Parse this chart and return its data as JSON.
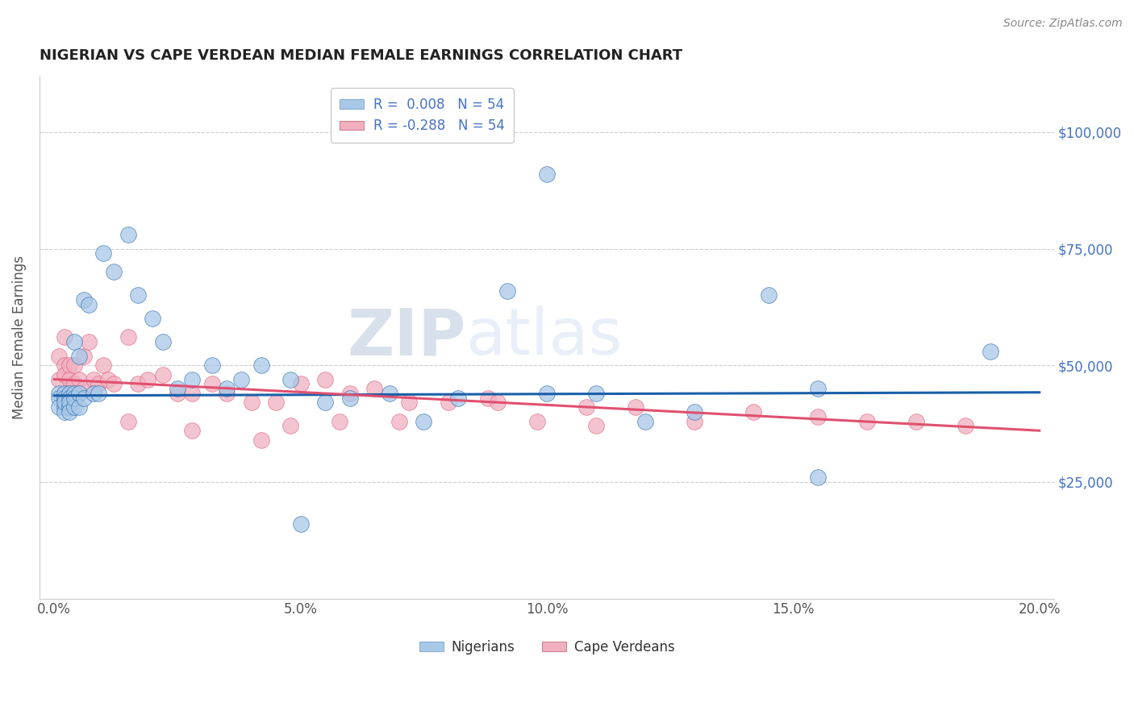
{
  "title": "NIGERIAN VS CAPE VERDEAN MEDIAN FEMALE EARNINGS CORRELATION CHART",
  "source": "Source: ZipAtlas.com",
  "ylabel": "Median Female Earnings",
  "xlabel_ticks": [
    "0.0%",
    "5.0%",
    "10.0%",
    "15.0%",
    "20.0%"
  ],
  "xlabel_vals": [
    0.0,
    0.05,
    0.1,
    0.15,
    0.2
  ],
  "ytick_labels": [
    "$25,000",
    "$50,000",
    "$75,000",
    "$100,000"
  ],
  "ytick_vals": [
    25000,
    50000,
    75000,
    100000
  ],
  "ylim": [
    0,
    112000
  ],
  "xlim": [
    -0.003,
    0.203
  ],
  "legend_label1": "R =  0.008   N = 54",
  "legend_label2": "R = -0.288   N = 54",
  "legend_bottom_label1": "Nigerians",
  "legend_bottom_label2": "Cape Verdeans",
  "blue_color": "#a8c8e8",
  "pink_color": "#f0b0c0",
  "blue_line_color": "#1a5fa8",
  "pink_line_color": "#e05070",
  "watermark_zip": "ZIP",
  "watermark_atlas": "atlas",
  "title_color": "#222222",
  "source_color": "#888888",
  "nig_trend_x": [
    0.0,
    0.2
  ],
  "nig_trend_y": [
    43500,
    44200
  ],
  "cv_trend_x": [
    0.0,
    0.2
  ],
  "cv_trend_y": [
    47000,
    36000
  ],
  "nigerians_x": [
    0.001,
    0.001,
    0.001,
    0.002,
    0.002,
    0.002,
    0.002,
    0.002,
    0.003,
    0.003,
    0.003,
    0.003,
    0.003,
    0.004,
    0.004,
    0.004,
    0.004,
    0.005,
    0.005,
    0.005,
    0.006,
    0.006,
    0.007,
    0.008,
    0.009,
    0.01,
    0.012,
    0.015,
    0.017,
    0.02,
    0.022,
    0.025,
    0.028,
    0.032,
    0.035,
    0.038,
    0.042,
    0.048,
    0.055,
    0.06,
    0.068,
    0.075,
    0.082,
    0.092,
    0.1,
    0.11,
    0.12,
    0.13,
    0.145,
    0.155,
    0.1,
    0.155,
    0.19,
    0.05
  ],
  "nigerians_y": [
    44000,
    43000,
    41000,
    44000,
    43000,
    41000,
    40000,
    42000,
    44000,
    43000,
    41000,
    42000,
    40000,
    55000,
    44000,
    41000,
    43000,
    52000,
    44000,
    41000,
    64000,
    43000,
    63000,
    44000,
    44000,
    74000,
    70000,
    78000,
    65000,
    60000,
    55000,
    45000,
    47000,
    50000,
    45000,
    47000,
    50000,
    47000,
    42000,
    43000,
    44000,
    38000,
    43000,
    66000,
    44000,
    44000,
    38000,
    40000,
    65000,
    45000,
    91000,
    26000,
    53000,
    16000
  ],
  "capeverdeans_x": [
    0.001,
    0.001,
    0.002,
    0.002,
    0.002,
    0.003,
    0.003,
    0.003,
    0.004,
    0.004,
    0.005,
    0.005,
    0.006,
    0.006,
    0.007,
    0.008,
    0.009,
    0.01,
    0.011,
    0.012,
    0.015,
    0.017,
    0.019,
    0.022,
    0.025,
    0.028,
    0.032,
    0.035,
    0.04,
    0.045,
    0.05,
    0.055,
    0.06,
    0.065,
    0.072,
    0.08,
    0.088,
    0.098,
    0.108,
    0.118,
    0.13,
    0.142,
    0.155,
    0.165,
    0.175,
    0.185,
    0.048,
    0.07,
    0.09,
    0.11,
    0.015,
    0.028,
    0.042,
    0.058
  ],
  "capeverdeans_y": [
    52000,
    47000,
    56000,
    50000,
    48000,
    50000,
    47000,
    44000,
    50000,
    46000,
    47000,
    44000,
    52000,
    45000,
    55000,
    47000,
    46000,
    50000,
    47000,
    46000,
    56000,
    46000,
    47000,
    48000,
    44000,
    44000,
    46000,
    44000,
    42000,
    42000,
    46000,
    47000,
    44000,
    45000,
    42000,
    42000,
    43000,
    38000,
    41000,
    41000,
    38000,
    40000,
    39000,
    38000,
    38000,
    37000,
    37000,
    38000,
    42000,
    37000,
    38000,
    36000,
    34000,
    38000
  ]
}
